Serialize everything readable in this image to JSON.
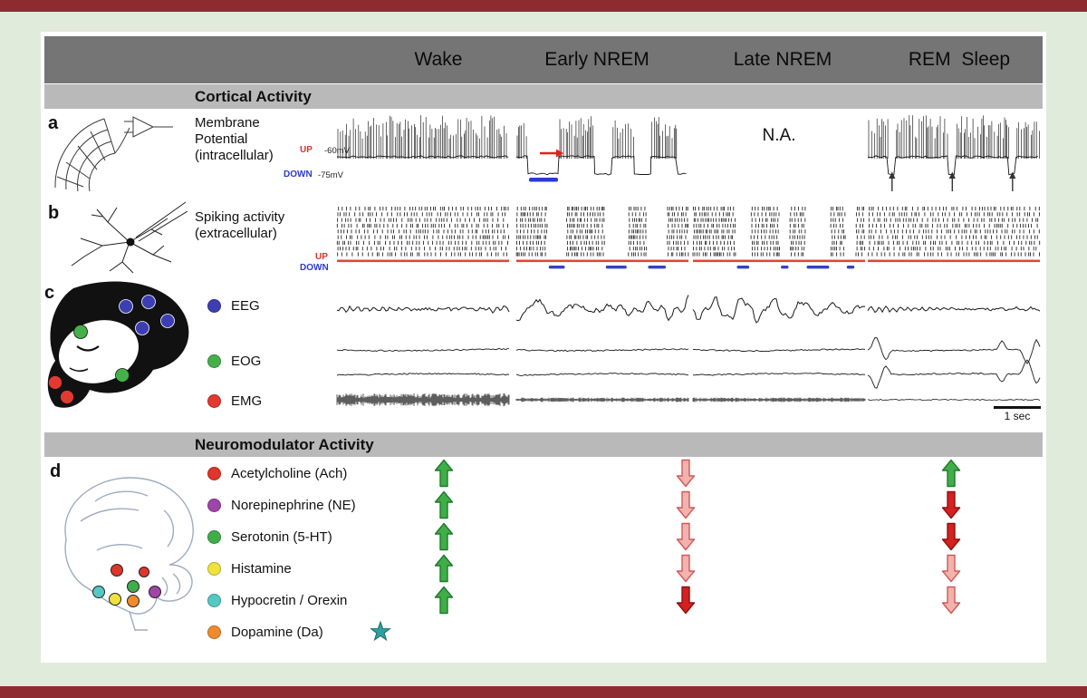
{
  "header": {
    "columns": [
      "Wake",
      "Early NREM",
      "Late NREM",
      "REM Sleep"
    ]
  },
  "sections": {
    "cortical": "Cortical Activity",
    "neuromodulator": "Neuromodulator Activity"
  },
  "panel_a": {
    "letter": "a",
    "title": "Membrane\nPotential\n(intracellular)",
    "up_label": "UP",
    "up_voltage": "-60mV",
    "down_label": "DOWN",
    "down_voltage": "-75mV",
    "late_nrem_na": "N.A."
  },
  "panel_b": {
    "letter": "b",
    "title": "Spiking activity\n(extracellular)",
    "up_label": "UP",
    "down_label": "DOWN"
  },
  "panel_c": {
    "letter": "c",
    "signals": [
      {
        "name": "EEG",
        "color": "#3c3fb4"
      },
      {
        "name": "EOG",
        "color": "#45b04a"
      },
      {
        "name": "EMG",
        "color": "#e23a30"
      }
    ],
    "scale_bar": "1 sec"
  },
  "panel_d": {
    "letter": "d",
    "neuromodulators": [
      {
        "name": "Acetylcholine (Ach)",
        "color": "#e0352b",
        "wake": "up",
        "nrem": "down",
        "rem": "up"
      },
      {
        "name": "Norepinephrine (NE)",
        "color": "#a044aa",
        "wake": "up",
        "nrem": "down",
        "rem": "down-strong"
      },
      {
        "name": "Serotonin (5-HT)",
        "color": "#3fae49",
        "wake": "up",
        "nrem": "down",
        "rem": "down-strong"
      },
      {
        "name": "Histamine",
        "color": "#f0e23c",
        "wake": "up",
        "nrem": "down",
        "rem": "down"
      },
      {
        "name": "Hypocretin / Orexin",
        "color": "#55c8c4",
        "wake": "up",
        "nrem": "down-strong",
        "rem": "down"
      },
      {
        "name": "Dopamine (Da)",
        "color": "#ef8b2c",
        "wake": "none",
        "nrem": "none",
        "rem": "none",
        "marker": "star"
      }
    ]
  },
  "colors": {
    "frame": "#8d2b31",
    "page_bg": "#e1ebdc",
    "header_bar": "#757575",
    "section_bar": "#b9b9b9",
    "up_text": "#e03030",
    "down_text": "#2b3bd0",
    "raster_up_line": "#e84338",
    "raster_down_dash": "#3342c8",
    "arrows": {
      "up": {
        "fill": "#3fae49",
        "stroke": "#1e7a2c"
      },
      "down": {
        "fill": "#f2b2ae",
        "stroke": "#cf5a55"
      },
      "down_strong": {
        "fill": "#d42020",
        "stroke": "#8f1010"
      }
    },
    "star": "#2f9e9e"
  }
}
